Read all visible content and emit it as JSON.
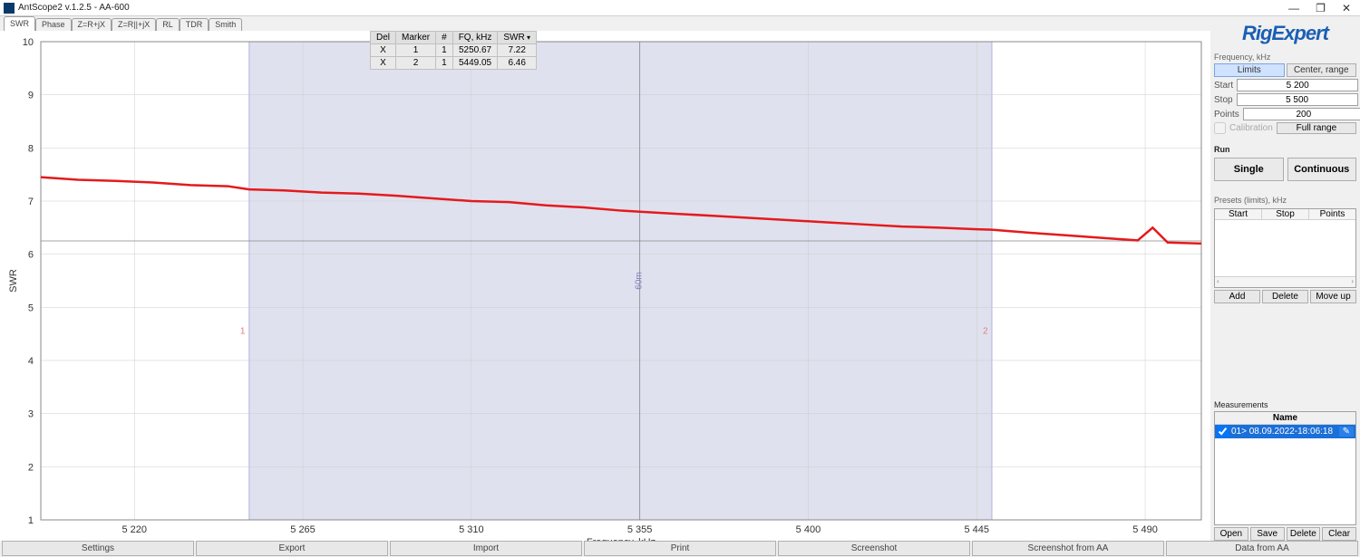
{
  "window": {
    "title": "AntScope2 v.1.2.5 - AA-600"
  },
  "tabs": [
    "SWR",
    "Phase",
    "Z=R+jX",
    "Z=R||+jX",
    "RL",
    "TDR",
    "Smith"
  ],
  "active_tab": 0,
  "marker_table": {
    "headers": [
      "Del",
      "Marker",
      "#",
      "FQ, kHz",
      "SWR"
    ],
    "rows": [
      {
        "del": "X",
        "marker": "1",
        "num": "1",
        "fq": "5250.67",
        "swr": "7.22"
      },
      {
        "del": "X",
        "marker": "2",
        "num": "1",
        "fq": "5449.05",
        "swr": "6.46"
      }
    ]
  },
  "chart": {
    "type": "line",
    "xlabel": "Frequency, kHz",
    "ylabel": "SWR",
    "xlim": [
      5195,
      5505
    ],
    "ylim": [
      1,
      10
    ],
    "xticks": [
      5220,
      5265,
      5310,
      5355,
      5400,
      5445,
      5490
    ],
    "xtick_labels": [
      "5 220",
      "5 265",
      "5 310",
      "5 355",
      "5 400",
      "5 445",
      "5 490"
    ],
    "yticks": [
      1,
      2,
      3,
      4,
      5,
      6,
      7,
      8,
      9,
      10
    ],
    "band": {
      "start": 5250.67,
      "end": 5449.05
    },
    "cursor": {
      "x": 5355,
      "label": "60m"
    },
    "markers": [
      {
        "n": "1",
        "x": 5250.67
      },
      {
        "n": "2",
        "x": 5449.05
      }
    ],
    "series_color": "#e41a1c",
    "band_color": "#c6c8e0",
    "grid_color": "#cccccc",
    "background": "#ffffff",
    "cursor_swr_line": 6.25,
    "data": [
      [
        5195,
        7.45
      ],
      [
        5205,
        7.4
      ],
      [
        5215,
        7.38
      ],
      [
        5225,
        7.35
      ],
      [
        5235,
        7.3
      ],
      [
        5245,
        7.28
      ],
      [
        5250.67,
        7.22
      ],
      [
        5260,
        7.2
      ],
      [
        5270,
        7.16
      ],
      [
        5280,
        7.14
      ],
      [
        5290,
        7.1
      ],
      [
        5300,
        7.05
      ],
      [
        5310,
        7.0
      ],
      [
        5320,
        6.98
      ],
      [
        5330,
        6.92
      ],
      [
        5340,
        6.88
      ],
      [
        5350,
        6.82
      ],
      [
        5355,
        6.8
      ],
      [
        5365,
        6.76
      ],
      [
        5375,
        6.72
      ],
      [
        5385,
        6.68
      ],
      [
        5395,
        6.64
      ],
      [
        5405,
        6.6
      ],
      [
        5415,
        6.56
      ],
      [
        5425,
        6.52
      ],
      [
        5435,
        6.5
      ],
      [
        5445,
        6.47
      ],
      [
        5449.05,
        6.46
      ],
      [
        5460,
        6.4
      ],
      [
        5470,
        6.35
      ],
      [
        5480,
        6.3
      ],
      [
        5488,
        6.26
      ],
      [
        5492,
        6.5
      ],
      [
        5496,
        6.22
      ],
      [
        5505,
        6.2
      ]
    ]
  },
  "bottom_buttons": [
    "Settings",
    "Export",
    "Import",
    "Print",
    "Screenshot",
    "Screenshot from AA",
    "Data from AA"
  ],
  "right": {
    "logo": "RigExpert",
    "frequency_label": "Frequency, kHz",
    "mode_limits": "Limits",
    "mode_center": "Center, range",
    "start_label": "Start",
    "start_value": "5 200",
    "stop_label": "Stop",
    "stop_value": "5 500",
    "points_label": "Points",
    "points_value": "200",
    "calibration_label": "Calibration",
    "fullrange": "Full range",
    "run_label": "Run",
    "single": "Single",
    "continuous": "Continuous",
    "presets_label": "Presets (limits), kHz",
    "preset_cols": [
      "Start",
      "Stop",
      "Points"
    ],
    "preset_btns": [
      "Add",
      "Delete",
      "Move up"
    ],
    "meas_label": "Measurements",
    "meas_col": "Name",
    "meas_row": "01> 08.09.2022-18:06:18",
    "meas_btns": [
      "Open",
      "Save",
      "Delete",
      "Clear"
    ]
  }
}
